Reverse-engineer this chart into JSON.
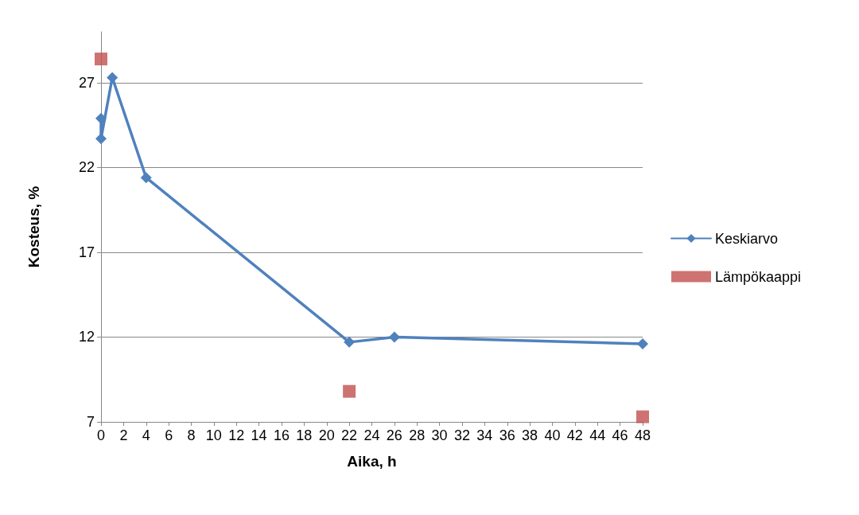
{
  "chart_data": {
    "type": "line",
    "xlabel": "Aika, h",
    "ylabel": "Kosteus, %",
    "xlim": [
      0,
      48
    ],
    "xticks": [
      0,
      2,
      4,
      6,
      8,
      10,
      12,
      14,
      16,
      18,
      20,
      22,
      24,
      26,
      28,
      30,
      32,
      34,
      36,
      38,
      40,
      42,
      44,
      46,
      48
    ],
    "ylim": [
      7,
      30
    ],
    "yticks": [
      7,
      12,
      17,
      22,
      27
    ],
    "grid": "y",
    "legend": "right",
    "series": [
      {
        "name": "Keskiarvo",
        "marker": "diamond",
        "color": "#4f81bd",
        "x": [
          0,
          0,
          1,
          4,
          22,
          26,
          48
        ],
        "values": [
          24.9,
          23.7,
          27.3,
          21.4,
          11.7,
          12.0,
          11.6
        ]
      },
      {
        "name": "Lämpökaappi",
        "type": "scatter",
        "marker": "square",
        "color": "#c0504d",
        "x": [
          0,
          22,
          48
        ],
        "values": [
          28.4,
          8.8,
          7.3
        ]
      }
    ]
  }
}
